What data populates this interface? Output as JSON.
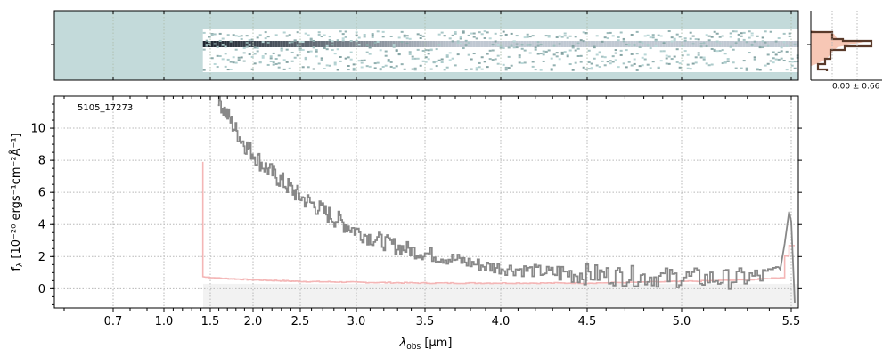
{
  "chart_data": [
    {
      "type": "heatmap",
      "description_role": "2D spectrum",
      "background_color": "#c3dada",
      "trace_color": "#1a2030",
      "x_range_um": [
        0.58,
        5.52
      ],
      "grid": true
    },
    {
      "type": "line",
      "role": "cross-dispersion profile",
      "annotation": "0.00 ± 0.66",
      "series": [
        {
          "color": "#5a3a2a",
          "fill": "#f7c7b5"
        }
      ]
    },
    {
      "type": "line",
      "label": "5105_17273",
      "xlabel_main": "λ",
      "xlabel_sub": "obs",
      "xlabel_unit": "[μm]",
      "ylabel_main": "f",
      "ylabel_sub": "λ",
      "ylabel_unit": "[10⁻²⁰ ergs⁻¹cm⁻²Å⁻¹]",
      "xlim": [
        0.58,
        5.52
      ],
      "ylim": [
        -1.2,
        12.0
      ],
      "x_ticks": [
        0.7,
        1.0,
        1.5,
        2.0,
        2.5,
        3.0,
        3.5,
        4.0,
        4.5,
        5.0,
        5.5
      ],
      "x_tick_labels": [
        "0.7",
        "1.0",
        "1.5",
        "2.0",
        "2.5",
        "3.0",
        "3.5",
        "4.0",
        "4.5",
        "5.0",
        "5.5"
      ],
      "y_ticks": [
        0,
        2,
        4,
        6,
        8,
        10
      ],
      "y_tick_labels": [
        "0",
        "2",
        "4",
        "6",
        "8",
        "10"
      ],
      "grid": true,
      "x_scale": "compressed (approx. sqrt-like)",
      "series": [
        {
          "color": "#888888",
          "x": [
            1.59,
            1.62,
            1.65,
            1.7,
            1.75,
            1.8,
            1.9,
            2.0,
            2.1,
            2.2,
            2.3,
            2.4,
            2.5,
            2.6,
            2.7,
            2.8,
            2.9,
            3.0,
            3.1,
            3.2,
            3.3,
            3.4,
            3.5,
            3.6,
            3.7,
            3.8,
            3.9,
            4.0,
            4.1,
            4.2,
            4.3,
            4.4,
            4.5,
            4.6,
            4.7,
            4.8,
            4.9,
            5.0,
            5.1,
            5.2,
            5.3,
            5.4,
            5.45,
            5.48,
            5.5
          ],
          "y": [
            12.0,
            11.6,
            11.2,
            10.8,
            10.3,
            9.8,
            9.0,
            8.4,
            7.7,
            7.2,
            6.7,
            6.2,
            5.7,
            5.3,
            4.8,
            4.4,
            4.0,
            3.6,
            3.2,
            2.9,
            2.6,
            2.4,
            2.2,
            2.0,
            1.8,
            1.6,
            1.4,
            1.3,
            1.2,
            1.1,
            1.0,
            0.95,
            0.9,
            0.85,
            0.8,
            0.75,
            0.7,
            0.7,
            0.65,
            0.6,
            0.7,
            0.8,
            1.5,
            4.5,
            -0.9
          ]
        },
        {
          "color": "#f4b6b6",
          "x": [
            1.42,
            1.42,
            1.45,
            1.5,
            1.6,
            1.8,
            2.0,
            2.5,
            3.0,
            3.5,
            4.0,
            4.5,
            5.0,
            5.3,
            5.45,
            5.48,
            5.5
          ],
          "y": [
            7.9,
            0.75,
            0.72,
            0.7,
            0.65,
            0.6,
            0.55,
            0.45,
            0.4,
            0.35,
            0.35,
            0.35,
            0.45,
            0.55,
            0.7,
            2.7,
            2.7
          ]
        }
      ]
    }
  ]
}
